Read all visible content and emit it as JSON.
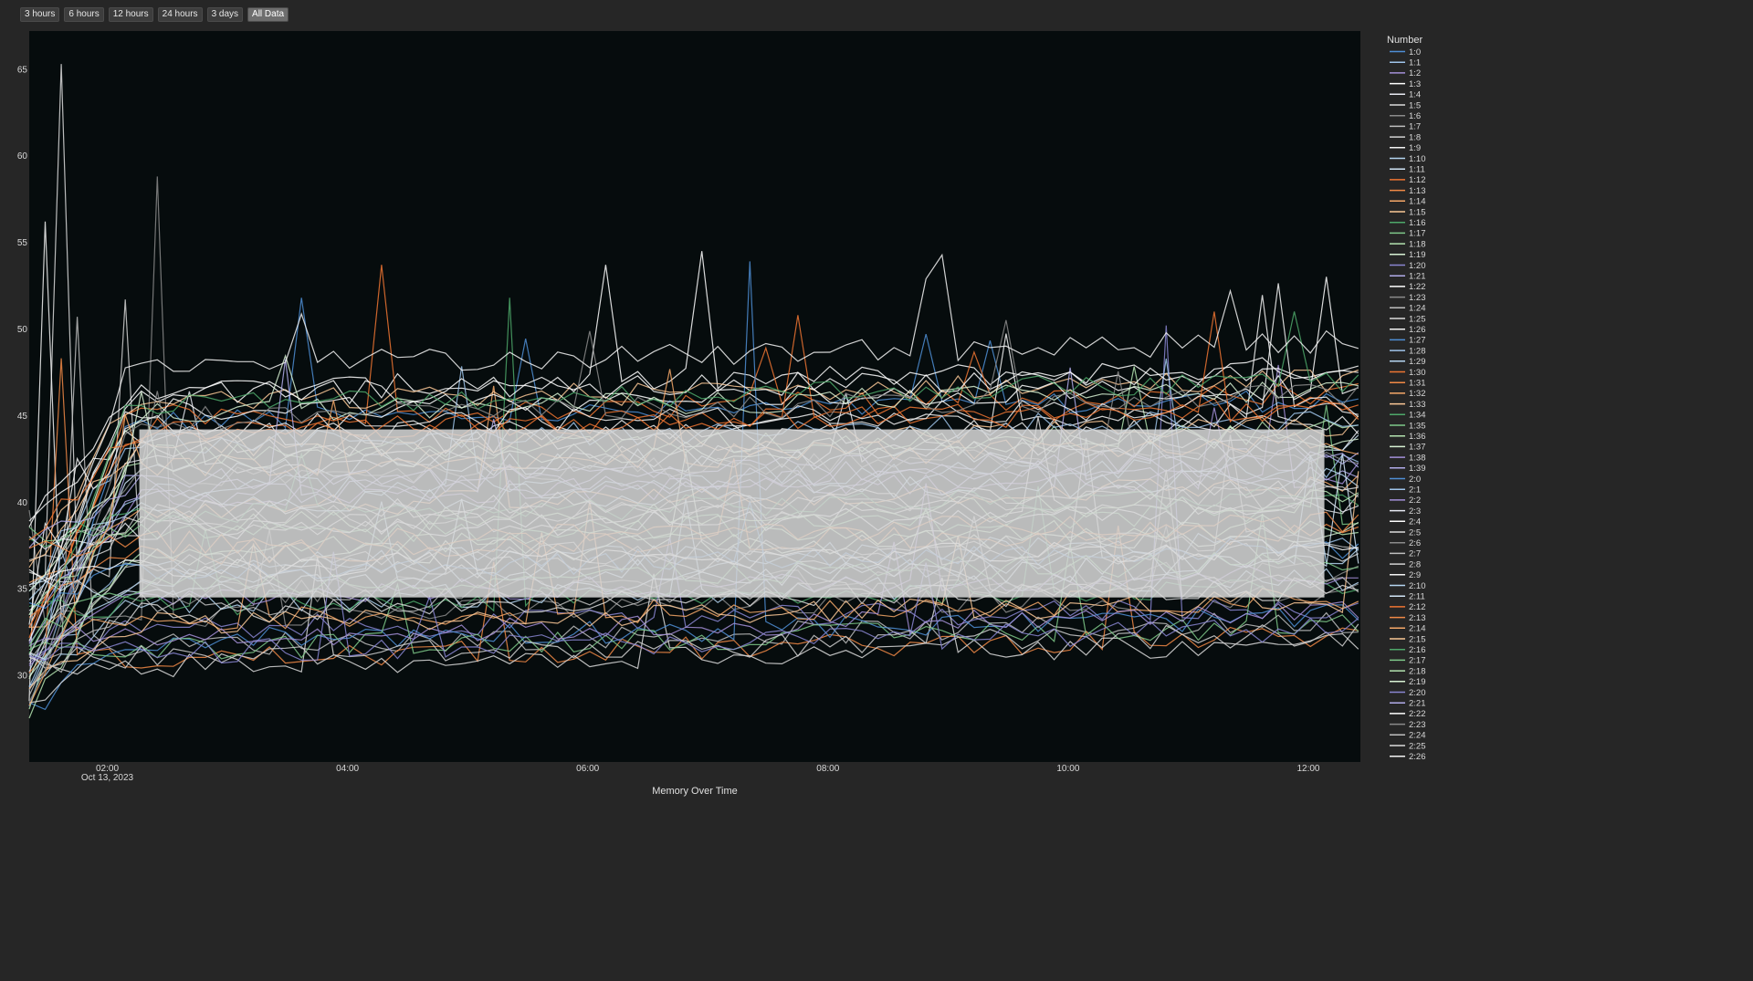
{
  "range_selector": {
    "buttons": [
      "3 hours",
      "6 hours",
      "12 hours",
      "24 hours",
      "3 days",
      "All Data"
    ],
    "active": "All Data"
  },
  "colors": {
    "page_bg": "#262626",
    "plot_bg": "#060c0d",
    "overlay": "#d8d8d8",
    "palette": [
      "#4f8fd6",
      "#9fc4ea",
      "#a48fd8",
      "#ffffff",
      "#e8eaf2",
      "#dcdcdc",
      "#8b8b8b",
      "#bfbfbf",
      "#d2d2d2",
      "#f4f4f4",
      "#b5d6f2",
      "#d2e6f8",
      "#f07532",
      "#f28a46",
      "#f6a868",
      "#fbc896",
      "#4ea86a",
      "#7fca8a",
      "#b4e4b0",
      "#d8f2d4",
      "#8a86d2",
      "#b2acea",
      "#e6e2f6"
    ]
  },
  "chart_data": {
    "type": "line",
    "title": "",
    "xlabel": "Memory Over Time",
    "ylabel": "",
    "x_start": "2023-10-13 01:21",
    "x_end": "2023-10-13 12:26",
    "x_ticks": [
      {
        "time": "02:00",
        "date": "Oct 13, 2023"
      },
      {
        "time": "04:00",
        "date": ""
      },
      {
        "time": "06:00",
        "date": ""
      },
      {
        "time": "08:00",
        "date": ""
      },
      {
        "time": "10:00",
        "date": ""
      },
      {
        "time": "12:00",
        "date": ""
      }
    ],
    "y_ticks": [
      30,
      35,
      40,
      45,
      50,
      55,
      60,
      65
    ],
    "ylim": [
      25,
      67.2
    ],
    "grid": false,
    "legend_position": "right",
    "legend_title": "Number",
    "series_names": [
      "1:0",
      "1:1",
      "1:2",
      "1:3",
      "1:4",
      "1:5",
      "1:6",
      "1:7",
      "1:8",
      "1:9",
      "1:10",
      "1:11",
      "1:12",
      "1:13",
      "1:14",
      "1:15",
      "1:16",
      "1:17",
      "1:18",
      "1:19",
      "1:20",
      "1:21",
      "1:22",
      "1:23",
      "1:24",
      "1:25",
      "1:26",
      "1:27",
      "1:28",
      "1:29",
      "1:30",
      "1:31",
      "1:32",
      "1:33",
      "1:34",
      "1:35",
      "1:36",
      "1:37",
      "1:38",
      "1:39",
      "2:0",
      "2:1",
      "2:2",
      "2:3",
      "2:4",
      "2:5",
      "2:6",
      "2:7",
      "2:8",
      "2:9",
      "2:10",
      "2:11",
      "2:12",
      "2:13",
      "2:14",
      "2:15",
      "2:16",
      "2:17",
      "2:18",
      "2:19",
      "2:20",
      "2:21",
      "2:22",
      "2:23",
      "2:24",
      "2:25",
      "2:26"
    ],
    "series_colors": [
      "#4f8fd6",
      "#9fc4ea",
      "#a48fd8",
      "#ffffff",
      "#e8eaf2",
      "#dcdcdc",
      "#8b8b8b",
      "#bfbfbf",
      "#d2d2d2",
      "#f4f4f4",
      "#b5d6f2",
      "#d2e6f8",
      "#f07532",
      "#f28a46",
      "#f6a868",
      "#fbc896",
      "#4ea86a",
      "#7fca8a",
      "#b4e4b0",
      "#d8f2d4",
      "#8a86d2",
      "#b2acea",
      "#ffffff",
      "#8b8b8b",
      "#bfbfbf",
      "#dcdcdc",
      "#f4f4f4",
      "#4f8fd6",
      "#9fc4ea",
      "#b5d6f2",
      "#f07532",
      "#f28a46",
      "#f6a868",
      "#fbc896",
      "#4ea86a",
      "#7fca8a",
      "#b4e4b0",
      "#d8f2d4",
      "#a48fd8",
      "#b2acea",
      "#4f8fd6",
      "#9fc4ea",
      "#a48fd8",
      "#e8eaf2",
      "#ffffff",
      "#dcdcdc",
      "#8b8b8b",
      "#bfbfbf",
      "#d2d2d2",
      "#f4f4f4",
      "#b5d6f2",
      "#d2e6f8",
      "#f07532",
      "#f28a46",
      "#f6a868",
      "#fbc896",
      "#4ea86a",
      "#7fca8a",
      "#b4e4b0",
      "#d8f2d4",
      "#8a86d2",
      "#b2acea",
      "#ffffff",
      "#8b8b8b",
      "#bfbfbf",
      "#dcdcdc",
      "#f4f4f4"
    ],
    "series_base_values": [
      44.5,
      36.2,
      40.1,
      46.3,
      42.0,
      38.4,
      33.2,
      31.6,
      35.8,
      43.0,
      34.1,
      41.7,
      44.8,
      30.8,
      39.5,
      45.6,
      33.8,
      37.9,
      42.6,
      36.7,
      32.5,
      41.1,
      45.2,
      34.6,
      38.9,
      30.4,
      43.6,
      31.9,
      40.6,
      35.3,
      44.0,
      36.9,
      33.0,
      42.9,
      39.0,
      31.4,
      37.2,
      45.0,
      34.4,
      40.3,
      35.9,
      43.3,
      32.1,
      38.1,
      46.0,
      33.5,
      41.4,
      36.4,
      30.9,
      44.2,
      39.8,
      34.9,
      43.9,
      37.5,
      41.9,
      32.8,
      45.5,
      35.1,
      38.6,
      42.3,
      31.2,
      40.8,
      36.0,
      44.7,
      33.9,
      39.3,
      47.8
    ],
    "spikes": [
      {
        "series": "1:9",
        "time": "01:26",
        "value": 56.2
      },
      {
        "series": "1:5",
        "time": "01:35",
        "value": 65.3
      },
      {
        "series": "1:6",
        "time": "02:26",
        "value": 58.8
      },
      {
        "series": "1:7",
        "time": "01:46",
        "value": 50.7
      },
      {
        "series": "1:8",
        "time": "02:08",
        "value": 51.7
      },
      {
        "series": "1:13",
        "time": "01:40",
        "value": 48.3
      },
      {
        "series": "1:0",
        "time": "03:37",
        "value": 51.8
      },
      {
        "series": "1:12",
        "time": "04:18",
        "value": 53.7
      },
      {
        "series": "1:16",
        "time": "05:24",
        "value": 51.8
      },
      {
        "series": "1:3",
        "time": "06:09",
        "value": 53.7
      },
      {
        "series": "1:27",
        "time": "07:24",
        "value": 53.9
      },
      {
        "series": "1:30",
        "time": "07:45",
        "value": 50.8
      },
      {
        "series": "2:26",
        "time": "11:22",
        "value": 52.2
      },
      {
        "series": "2:12",
        "time": "11:13",
        "value": 51.0
      },
      {
        "series": "1:20",
        "time": "10:47",
        "value": 50.2
      }
    ],
    "annotations": [
      {
        "type": "rect",
        "color": "#d8d8d8",
        "x0": "02:16",
        "x1": "12:08",
        "y0": 34.5,
        "y1": 44.2
      }
    ]
  }
}
